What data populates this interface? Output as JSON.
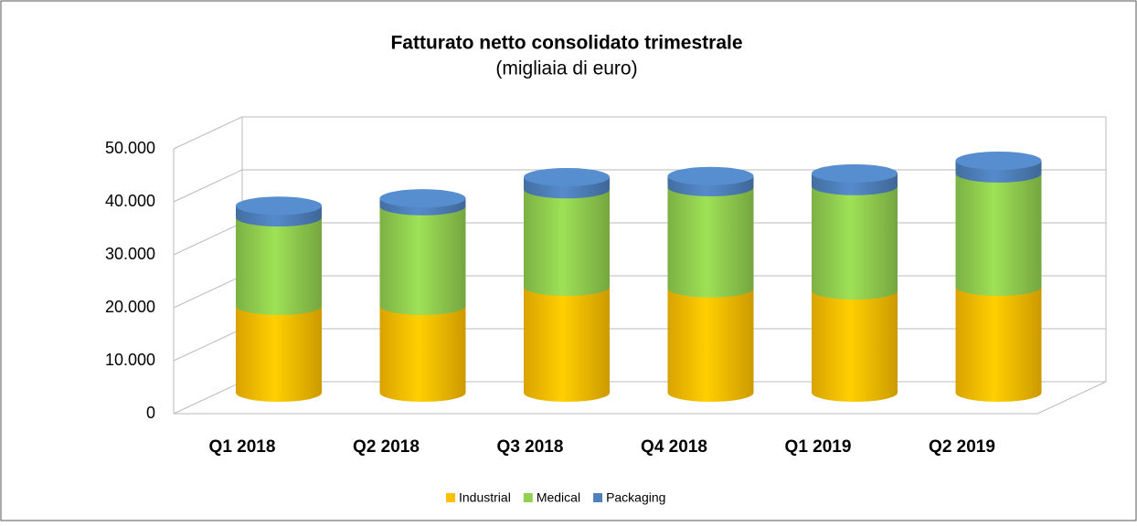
{
  "chart_data": {
    "type": "bar3d_stacked",
    "title": "Fatturato netto consolidato trimestrale",
    "subtitle": "(migliaia di euro)",
    "categories": [
      "Q1 2018",
      "Q2 2018",
      "Q3 2018",
      "Q4 2018",
      "Q1 2019",
      "Q2 2019"
    ],
    "series": [
      {
        "name": "Industrial",
        "color": "#ffc000",
        "values": [
          16400,
          16400,
          20000,
          19700,
          19300,
          20000
        ]
      },
      {
        "name": "Medical",
        "color": "#92d050",
        "values": [
          16700,
          18800,
          18400,
          19100,
          19700,
          21400
        ]
      },
      {
        "name": "Packaging",
        "color": "#4f81bd",
        "values": [
          2200,
          1500,
          2300,
          2100,
          2400,
          2400
        ]
      }
    ],
    "ylim": [
      0,
      50000
    ],
    "yticks": [
      0,
      {
        "value": 10000,
        "label": "10.000"
      },
      {
        "value": 20000,
        "label": "20.000"
      },
      {
        "value": 30000,
        "label": "30.000"
      },
      {
        "value": 40000,
        "label": "40.000"
      },
      {
        "value": 50000,
        "label": "50.000"
      }
    ],
    "grid": true,
    "legend": "bottom"
  }
}
